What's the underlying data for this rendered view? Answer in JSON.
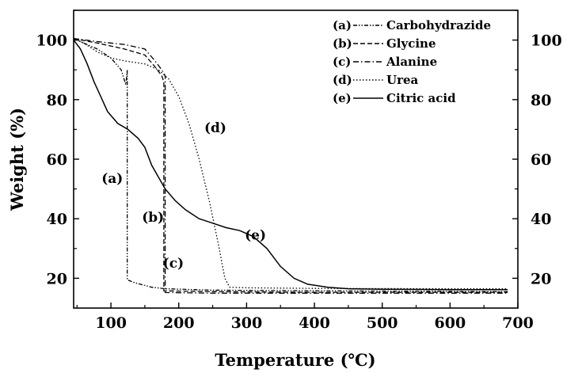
{
  "chart_data": {
    "type": "line",
    "title": "",
    "xlabel": "Temperature (℃)",
    "ylabel": "Weight (%)",
    "xlim": [
      45,
      700
    ],
    "ylim": [
      10,
      110
    ],
    "x_ticks": [
      100,
      200,
      300,
      400,
      500,
      600,
      700
    ],
    "y_ticks": [
      20,
      40,
      60,
      80,
      100
    ],
    "y_ticks_right": [
      20,
      40,
      60,
      80,
      100
    ],
    "legend_position": "top-right",
    "grid": false,
    "series": [
      {
        "key": "a",
        "name": "Carbohydrazide",
        "legend_text": "(a)",
        "dash": "dash-dot-dot",
        "curve_label": {
          "text": "(a)",
          "x": 102,
          "y": 52
        },
        "points": [
          [
            45,
            100.5
          ],
          [
            60,
            99
          ],
          [
            80,
            97
          ],
          [
            100,
            94
          ],
          [
            115,
            90
          ],
          [
            122,
            85
          ],
          [
            124,
            90
          ],
          [
            124,
            19.5
          ],
          [
            135,
            18.5
          ],
          [
            160,
            17
          ],
          [
            180,
            16.5
          ],
          [
            250,
            16
          ],
          [
            400,
            15.8
          ],
          [
            600,
            15.6
          ],
          [
            685,
            15.5
          ]
        ]
      },
      {
        "key": "b",
        "name": "Glycine",
        "legend_text": "(b)",
        "dash": "dashed",
        "curve_label": {
          "text": "(b)",
          "x": 162,
          "y": 39
        },
        "points": [
          [
            45,
            100.5
          ],
          [
            80,
            99
          ],
          [
            120,
            97
          ],
          [
            150,
            95
          ],
          [
            165,
            91
          ],
          [
            175,
            88
          ],
          [
            178,
            86
          ],
          [
            178,
            15.8
          ],
          [
            250,
            15.5
          ],
          [
            400,
            15.3
          ],
          [
            600,
            15.3
          ],
          [
            685,
            15.3
          ]
        ]
      },
      {
        "key": "c",
        "name": "Alanine",
        "legend_text": "(c)",
        "dash": "dash-dot",
        "curve_label": {
          "text": "(c)",
          "x": 192,
          "y": 23.5
        },
        "points": [
          [
            45,
            100.5
          ],
          [
            80,
            99.5
          ],
          [
            120,
            98.5
          ],
          [
            150,
            97
          ],
          [
            165,
            93
          ],
          [
            175,
            90
          ],
          [
            180,
            88
          ],
          [
            180,
            15.2
          ],
          [
            250,
            15
          ],
          [
            400,
            15
          ],
          [
            600,
            15
          ],
          [
            685,
            15
          ]
        ]
      },
      {
        "key": "d",
        "name": "Urea",
        "legend_text": "(d)",
        "dash": "dotted",
        "curve_label": {
          "text": "(d)",
          "x": 254,
          "y": 69
        },
        "points": [
          [
            45,
            100.5
          ],
          [
            60,
            99
          ],
          [
            80,
            96
          ],
          [
            100,
            94
          ],
          [
            120,
            93
          ],
          [
            150,
            92
          ],
          [
            170,
            90
          ],
          [
            185,
            87
          ],
          [
            200,
            81
          ],
          [
            215,
            72
          ],
          [
            230,
            60
          ],
          [
            245,
            46
          ],
          [
            258,
            32
          ],
          [
            268,
            20
          ],
          [
            275,
            17
          ],
          [
            300,
            16.8
          ],
          [
            400,
            16.6
          ],
          [
            600,
            16.5
          ],
          [
            685,
            16.5
          ]
        ]
      },
      {
        "key": "e",
        "name": "Citric acid",
        "legend_text": "(e)",
        "dash": "solid",
        "curve_label": {
          "text": "(e)",
          "x": 313,
          "y": 33
        },
        "points": [
          [
            45,
            100
          ],
          [
            55,
            97
          ],
          [
            65,
            92
          ],
          [
            75,
            86
          ],
          [
            85,
            81
          ],
          [
            95,
            76
          ],
          [
            110,
            72
          ],
          [
            125,
            70
          ],
          [
            140,
            67
          ],
          [
            150,
            64
          ],
          [
            160,
            58
          ],
          [
            170,
            54
          ],
          [
            180,
            50
          ],
          [
            195,
            46
          ],
          [
            210,
            43
          ],
          [
            230,
            40
          ],
          [
            250,
            38.5
          ],
          [
            270,
            37
          ],
          [
            290,
            36
          ],
          [
            310,
            34
          ],
          [
            330,
            30
          ],
          [
            350,
            24
          ],
          [
            370,
            20
          ],
          [
            390,
            18
          ],
          [
            420,
            17
          ],
          [
            450,
            16.5
          ],
          [
            500,
            16.3
          ],
          [
            600,
            16.2
          ],
          [
            685,
            16.2
          ]
        ]
      }
    ]
  }
}
